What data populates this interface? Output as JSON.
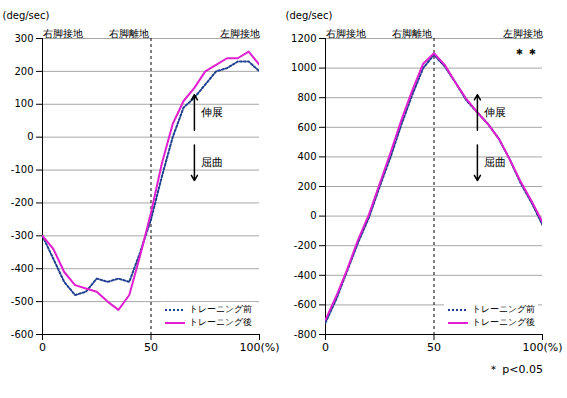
{
  "chart_data": [
    {
      "type": "line",
      "y_label": "(deg/sec)",
      "events": [
        {
          "x": 0,
          "label": "右脚接地"
        },
        {
          "x": 40,
          "label": "右脚離地"
        },
        {
          "x": 100,
          "label": "左脚接地"
        }
      ],
      "extension_label": "伸展",
      "flexion_label": "屈曲",
      "reference_x": 50,
      "x": [
        0,
        5,
        10,
        15,
        20,
        25,
        30,
        35,
        40,
        45,
        50,
        55,
        60,
        65,
        70,
        75,
        80,
        85,
        90,
        95,
        100
      ],
      "series": [
        {
          "name": "トレーニング前",
          "color": "#1f3f8f",
          "line_style": "dotted",
          "values": [
            -300,
            -370,
            -440,
            -480,
            -470,
            -430,
            -440,
            -430,
            -440,
            -350,
            -250,
            -120,
            0,
            90,
            120,
            160,
            200,
            210,
            230,
            230,
            200
          ]
        },
        {
          "name": "トレーニング後",
          "color": "#e020d0",
          "line_style": "solid",
          "values": [
            -300,
            -340,
            -410,
            -450,
            -460,
            -470,
            -500,
            -525,
            -480,
            -360,
            -230,
            -80,
            40,
            110,
            150,
            200,
            220,
            240,
            240,
            260,
            220
          ]
        }
      ],
      "xlim": [
        0,
        100
      ],
      "xticks": [
        0,
        50,
        {
          "value": 100,
          "label": "100(%)"
        }
      ],
      "ylim": [
        -600,
        300
      ],
      "yticks": [
        -600,
        -500,
        -400,
        -300,
        -200,
        -100,
        0,
        100,
        200,
        300
      ],
      "grid": true,
      "legend": "bottom-right"
    },
    {
      "type": "line",
      "y_label": "(deg/sec)",
      "events": [
        {
          "x": 0,
          "label": "右脚接地"
        },
        {
          "x": 40,
          "label": "右脚離地"
        },
        {
          "x": 100,
          "label": "左脚接地"
        }
      ],
      "extension_label": "伸展",
      "flexion_label": "屈曲",
      "significance": "＊＊",
      "reference_x": 50,
      "x": [
        0,
        5,
        10,
        15,
        20,
        25,
        30,
        35,
        40,
        45,
        50,
        55,
        60,
        65,
        70,
        75,
        80,
        85,
        90,
        95,
        100
      ],
      "series": [
        {
          "name": "トレーニング前",
          "color": "#1f3f8f",
          "line_style": "dotted",
          "values": [
            -720,
            -560,
            -370,
            -180,
            -10,
            200,
            400,
            620,
            820,
            1000,
            1090,
            1010,
            900,
            780,
            700,
            620,
            520,
            380,
            220,
            90,
            -60
          ]
        },
        {
          "name": "トレーニング後",
          "color": "#e020d0",
          "line_style": "solid",
          "values": [
            -700,
            -540,
            -360,
            -160,
            10,
            220,
            430,
            650,
            850,
            1030,
            1100,
            1020,
            900,
            790,
            700,
            620,
            520,
            380,
            230,
            100,
            -40
          ]
        }
      ],
      "xlim": [
        0,
        100
      ],
      "xticks": [
        0,
        50,
        {
          "value": 100,
          "label": "100(%)"
        }
      ],
      "ylim": [
        -800,
        1200
      ],
      "yticks": [
        -800,
        -600,
        -400,
        -200,
        0,
        200,
        400,
        600,
        800,
        1000,
        1200
      ],
      "grid": true,
      "legend": "bottom-right"
    }
  ],
  "footnote": "＊ p<0.05"
}
